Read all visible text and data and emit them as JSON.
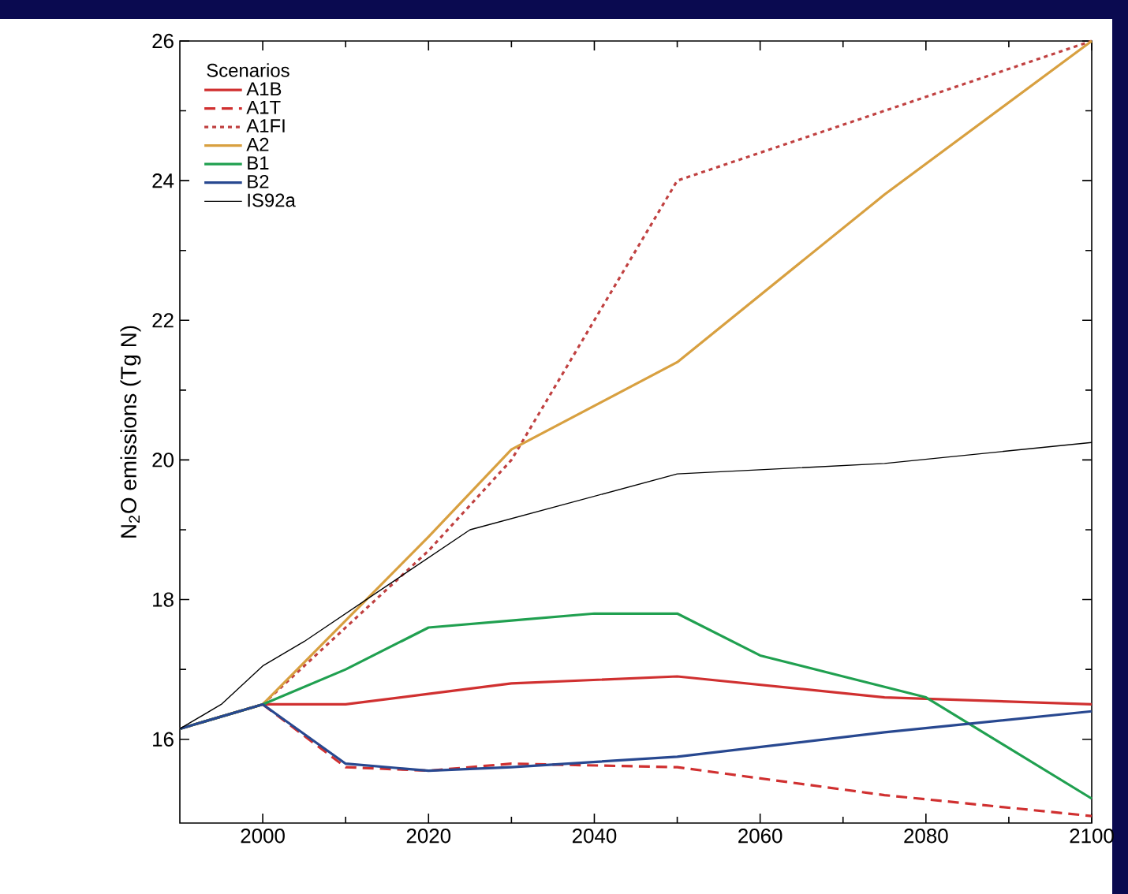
{
  "chart_data": {
    "type": "line",
    "ylabel": "N$_{2}$O emissions (Tg N)",
    "legend_title": "Scenarios",
    "legend": "top left",
    "grid": false,
    "xlim": [
      1990,
      2100
    ],
    "ylim": [
      14.8,
      26
    ],
    "xticks": [
      2000,
      2020,
      2040,
      2060,
      2080,
      2100
    ],
    "yticks": [
      16,
      18,
      20,
      22,
      24,
      26
    ],
    "series": [
      {
        "name": "A1B",
        "color": "#d03030",
        "line_style": "solid",
        "x": [
          1990,
          2000,
          2010,
          2020,
          2030,
          2050,
          2075,
          2100
        ],
        "values": [
          16.15,
          16.5,
          16.5,
          16.65,
          16.8,
          16.9,
          16.6,
          16.5
        ]
      },
      {
        "name": "A1T",
        "color": "#d03030",
        "line_style": "dashed",
        "x": [
          1990,
          2000,
          2010,
          2020,
          2030,
          2050,
          2075,
          2100
        ],
        "values": [
          16.15,
          16.5,
          15.6,
          15.55,
          15.65,
          15.6,
          15.2,
          14.9
        ]
      },
      {
        "name": "A1FI",
        "color": "#c04040",
        "line_style": "dotted",
        "x": [
          1990,
          2000,
          2010,
          2020,
          2030,
          2050,
          2075,
          2100
        ],
        "values": [
          16.15,
          16.5,
          17.6,
          18.7,
          20.0,
          24.0,
          25.0,
          26.0
        ]
      },
      {
        "name": "A2",
        "color": "#d8a040",
        "line_style": "solid",
        "x": [
          1990,
          2000,
          2010,
          2020,
          2030,
          2050,
          2075,
          2100
        ],
        "values": [
          16.15,
          16.5,
          17.7,
          18.9,
          20.15,
          21.4,
          23.8,
          26.0
        ]
      },
      {
        "name": "B1",
        "color": "#20a050",
        "line_style": "solid",
        "x": [
          1990,
          2000,
          2010,
          2020,
          2030,
          2040,
          2050,
          2060,
          2070,
          2080,
          2100
        ],
        "values": [
          16.15,
          16.5,
          17.0,
          17.6,
          17.7,
          17.8,
          17.8,
          17.2,
          16.9,
          16.6,
          15.15
        ]
      },
      {
        "name": "B2",
        "color": "#284890",
        "line_style": "solid",
        "x": [
          1990,
          2000,
          2010,
          2020,
          2030,
          2050,
          2075,
          2100
        ],
        "values": [
          16.15,
          16.5,
          15.65,
          15.55,
          15.6,
          15.75,
          16.1,
          16.4
        ]
      },
      {
        "name": "IS92a",
        "color": "#000000",
        "line_style": "solid",
        "x": [
          1990,
          1995,
          2000,
          2005,
          2010,
          2020,
          2025,
          2050,
          2075,
          2100
        ],
        "values": [
          16.15,
          16.5,
          17.05,
          17.4,
          17.8,
          18.6,
          19.0,
          19.8,
          19.95,
          20.25
        ]
      }
    ]
  }
}
